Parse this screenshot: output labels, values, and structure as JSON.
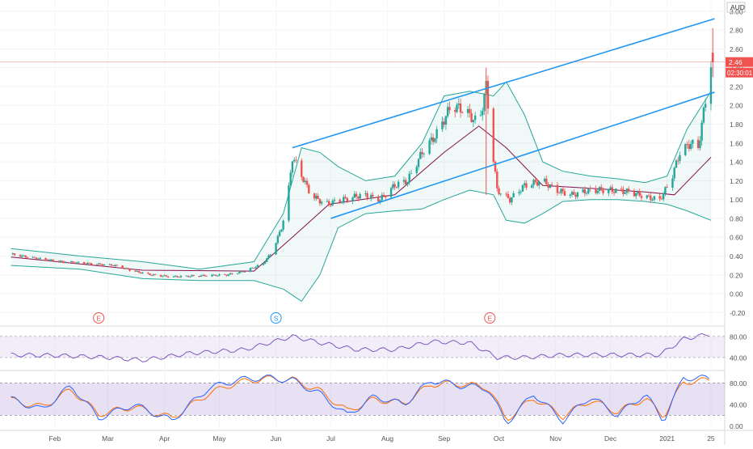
{
  "chart_data": {
    "type": "line",
    "instrument": {
      "currency": "AUD",
      "last_price": "2.46",
      "countdown": "02:30:01"
    },
    "colors": {
      "up": "#26a69a",
      "down": "#ef5350",
      "channel": "#2196f3",
      "bands": "#26a69a",
      "basis": "#880e4f",
      "rsi": "#7e57c2",
      "stoch_k": "#2962ff",
      "stoch_d": "#ff6d00"
    },
    "x_months": [
      {
        "label": "Feb",
        "date": "2020-02-01"
      },
      {
        "label": "Mar",
        "date": "2020-03-01"
      },
      {
        "label": "Apr",
        "date": "2020-04-01"
      },
      {
        "label": "May",
        "date": "2020-05-01"
      },
      {
        "label": "Jun",
        "date": "2020-06-01"
      },
      {
        "label": "Jul",
        "date": "2020-07-01"
      },
      {
        "label": "Aug",
        "date": "2020-08-01"
      },
      {
        "label": "Sep",
        "date": "2020-09-01"
      },
      {
        "label": "Oct",
        "date": "2020-10-01"
      },
      {
        "label": "Nov",
        "date": "2020-11-01"
      },
      {
        "label": "Dec",
        "date": "2020-12-01"
      },
      {
        "label": "2021",
        "date": "2021-01-01"
      },
      {
        "label": "25",
        "date": "2021-01-25"
      }
    ],
    "price_axis": {
      "ylim": [
        -0.3,
        3.05
      ],
      "ticks": [
        "3.00",
        "2.80",
        "2.60",
        "2.40",
        "2.20",
        "2.00",
        "1.80",
        "1.60",
        "1.40",
        "1.20",
        "1.00",
        "0.80",
        "0.60",
        "0.40",
        "0.20",
        "0.00",
        "-0.20"
      ]
    },
    "price_series": [
      {
        "date": "2020-01-08",
        "v": 0.42
      },
      {
        "date": "2020-01-20",
        "v": 0.38
      },
      {
        "date": "2020-02-05",
        "v": 0.34
      },
      {
        "date": "2020-02-20",
        "v": 0.32
      },
      {
        "date": "2020-03-05",
        "v": 0.3
      },
      {
        "date": "2020-03-15",
        "v": 0.24
      },
      {
        "date": "2020-03-25",
        "v": 0.2
      },
      {
        "date": "2020-04-05",
        "v": 0.18
      },
      {
        "date": "2020-04-20",
        "v": 0.19
      },
      {
        "date": "2020-05-05",
        "v": 0.2
      },
      {
        "date": "2020-05-15",
        "v": 0.24
      },
      {
        "date": "2020-05-25",
        "v": 0.32
      },
      {
        "date": "2020-05-30",
        "v": 0.45
      },
      {
        "date": "2020-06-04",
        "v": 0.7
      },
      {
        "date": "2020-06-07",
        "v": 0.95
      },
      {
        "date": "2020-06-10",
        "v": 1.45
      },
      {
        "date": "2020-06-14",
        "v": 1.3
      },
      {
        "date": "2020-06-20",
        "v": 1.05
      },
      {
        "date": "2020-06-28",
        "v": 0.95
      },
      {
        "date": "2020-07-08",
        "v": 1.0
      },
      {
        "date": "2020-07-18",
        "v": 1.05
      },
      {
        "date": "2020-07-28",
        "v": 1.0
      },
      {
        "date": "2020-08-05",
        "v": 1.15
      },
      {
        "date": "2020-08-12",
        "v": 1.2
      },
      {
        "date": "2020-08-20",
        "v": 1.5
      },
      {
        "date": "2020-08-28",
        "v": 1.7
      },
      {
        "date": "2020-09-05",
        "v": 2.0
      },
      {
        "date": "2020-09-12",
        "v": 1.95
      },
      {
        "date": "2020-09-20",
        "v": 1.8
      },
      {
        "date": "2020-09-24",
        "v": 2.2
      },
      {
        "date": "2020-09-27",
        "v": 1.6
      },
      {
        "date": "2020-09-30",
        "v": 1.1
      },
      {
        "date": "2020-10-07",
        "v": 1.0
      },
      {
        "date": "2020-10-15",
        "v": 1.15
      },
      {
        "date": "2020-10-25",
        "v": 1.2
      },
      {
        "date": "2020-11-01",
        "v": 1.1
      },
      {
        "date": "2020-11-10",
        "v": 1.05
      },
      {
        "date": "2020-11-20",
        "v": 1.1
      },
      {
        "date": "2020-12-01",
        "v": 1.1
      },
      {
        "date": "2020-12-12",
        "v": 1.08
      },
      {
        "date": "2020-12-22",
        "v": 1.02
      },
      {
        "date": "2020-12-28",
        "v": 1.0
      },
      {
        "date": "2021-01-03",
        "v": 1.2
      },
      {
        "date": "2021-01-08",
        "v": 1.5
      },
      {
        "date": "2021-01-14",
        "v": 1.6
      },
      {
        "date": "2021-01-18",
        "v": 1.55
      },
      {
        "date": "2021-01-22",
        "v": 2.05
      },
      {
        "date": "2021-01-25",
        "v": 2.46
      }
    ],
    "upper_band": [
      {
        "date": "2020-01-08",
        "v": 0.48
      },
      {
        "date": "2020-02-15",
        "v": 0.4
      },
      {
        "date": "2020-03-20",
        "v": 0.34
      },
      {
        "date": "2020-04-20",
        "v": 0.26
      },
      {
        "date": "2020-05-20",
        "v": 0.34
      },
      {
        "date": "2020-06-05",
        "v": 0.85
      },
      {
        "date": "2020-06-15",
        "v": 1.55
      },
      {
        "date": "2020-06-25",
        "v": 1.5
      },
      {
        "date": "2020-07-05",
        "v": 1.35
      },
      {
        "date": "2020-07-20",
        "v": 1.2
      },
      {
        "date": "2020-08-05",
        "v": 1.25
      },
      {
        "date": "2020-08-20",
        "v": 1.6
      },
      {
        "date": "2020-09-01",
        "v": 2.1
      },
      {
        "date": "2020-09-15",
        "v": 2.15
      },
      {
        "date": "2020-09-28",
        "v": 2.1
      },
      {
        "date": "2020-10-05",
        "v": 2.25
      },
      {
        "date": "2020-10-15",
        "v": 1.9
      },
      {
        "date": "2020-10-25",
        "v": 1.4
      },
      {
        "date": "2020-11-05",
        "v": 1.3
      },
      {
        "date": "2020-11-20",
        "v": 1.25
      },
      {
        "date": "2020-12-05",
        "v": 1.22
      },
      {
        "date": "2020-12-20",
        "v": 1.18
      },
      {
        "date": "2021-01-01",
        "v": 1.25
      },
      {
        "date": "2021-01-12",
        "v": 1.75
      },
      {
        "date": "2021-01-25",
        "v": 2.15
      }
    ],
    "lower_band": [
      {
        "date": "2020-01-08",
        "v": 0.3
      },
      {
        "date": "2020-02-15",
        "v": 0.26
      },
      {
        "date": "2020-03-20",
        "v": 0.16
      },
      {
        "date": "2020-04-20",
        "v": 0.14
      },
      {
        "date": "2020-05-20",
        "v": 0.14
      },
      {
        "date": "2020-06-05",
        "v": 0.05
      },
      {
        "date": "2020-06-15",
        "v": -0.08
      },
      {
        "date": "2020-06-25",
        "v": 0.2
      },
      {
        "date": "2020-07-05",
        "v": 0.7
      },
      {
        "date": "2020-07-20",
        "v": 0.85
      },
      {
        "date": "2020-08-05",
        "v": 0.88
      },
      {
        "date": "2020-08-20",
        "v": 0.9
      },
      {
        "date": "2020-09-01",
        "v": 1.0
      },
      {
        "date": "2020-09-15",
        "v": 1.1
      },
      {
        "date": "2020-09-28",
        "v": 1.05
      },
      {
        "date": "2020-10-05",
        "v": 0.78
      },
      {
        "date": "2020-10-15",
        "v": 0.75
      },
      {
        "date": "2020-10-25",
        "v": 0.85
      },
      {
        "date": "2020-11-05",
        "v": 0.98
      },
      {
        "date": "2020-11-20",
        "v": 1.0
      },
      {
        "date": "2020-12-05",
        "v": 1.0
      },
      {
        "date": "2020-12-20",
        "v": 0.98
      },
      {
        "date": "2021-01-01",
        "v": 0.95
      },
      {
        "date": "2021-01-12",
        "v": 0.88
      },
      {
        "date": "2021-01-25",
        "v": 0.78
      }
    ],
    "basis": [
      {
        "date": "2020-01-08",
        "v": 0.39
      },
      {
        "date": "2020-03-20",
        "v": 0.25
      },
      {
        "date": "2020-05-20",
        "v": 0.24
      },
      {
        "date": "2020-06-10",
        "v": 0.6
      },
      {
        "date": "2020-06-30",
        "v": 0.95
      },
      {
        "date": "2020-08-05",
        "v": 1.05
      },
      {
        "date": "2020-09-01",
        "v": 1.5
      },
      {
        "date": "2020-09-20",
        "v": 1.78
      },
      {
        "date": "2020-10-05",
        "v": 1.55
      },
      {
        "date": "2020-10-25",
        "v": 1.15
      },
      {
        "date": "2020-11-20",
        "v": 1.12
      },
      {
        "date": "2020-12-20",
        "v": 1.08
      },
      {
        "date": "2021-01-05",
        "v": 1.05
      },
      {
        "date": "2021-01-25",
        "v": 1.45
      }
    ],
    "trend_channel": [
      {
        "from": {
          "date": "2020-06-10",
          "v": 1.55
        },
        "to": {
          "date": "2021-01-27",
          "v": 2.92
        }
      },
      {
        "from": {
          "date": "2020-07-01",
          "v": 0.8
        },
        "to": {
          "date": "2021-01-27",
          "v": 2.14
        }
      }
    ],
    "event_markers": [
      {
        "label": "E",
        "date": "2020-02-25"
      },
      {
        "label": "S",
        "date": "2020-06-01"
      },
      {
        "label": "E",
        "date": "2020-09-26"
      }
    ],
    "rsi": {
      "levels": [
        "80.00",
        "40.00"
      ],
      "ylim": [
        20,
        95
      ],
      "values": [
        {
          "date": "2020-01-08",
          "v": 45
        },
        {
          "date": "2020-02-01",
          "v": 44
        },
        {
          "date": "2020-03-01",
          "v": 40
        },
        {
          "date": "2020-03-20",
          "v": 35
        },
        {
          "date": "2020-04-15",
          "v": 48
        },
        {
          "date": "2020-05-15",
          "v": 55
        },
        {
          "date": "2020-06-10",
          "v": 80
        },
        {
          "date": "2020-06-25",
          "v": 68
        },
        {
          "date": "2020-07-15",
          "v": 55
        },
        {
          "date": "2020-08-05",
          "v": 55
        },
        {
          "date": "2020-08-25",
          "v": 70
        },
        {
          "date": "2020-09-15",
          "v": 68
        },
        {
          "date": "2020-09-30",
          "v": 40
        },
        {
          "date": "2020-10-15",
          "v": 40
        },
        {
          "date": "2020-11-05",
          "v": 45
        },
        {
          "date": "2020-12-01",
          "v": 45
        },
        {
          "date": "2020-12-28",
          "v": 45
        },
        {
          "date": "2021-01-10",
          "v": 75
        },
        {
          "date": "2021-01-25",
          "v": 85
        }
      ]
    },
    "stoch": {
      "levels": [
        "80.00",
        "40.00",
        "0.00"
      ],
      "ylim": [
        -5,
        100
      ],
      "k_values": [
        {
          "date": "2020-01-08",
          "v": 50
        },
        {
          "date": "2020-01-25",
          "v": 30
        },
        {
          "date": "2020-02-10",
          "v": 75
        },
        {
          "date": "2020-02-25",
          "v": 15
        },
        {
          "date": "2020-03-15",
          "v": 40
        },
        {
          "date": "2020-04-05",
          "v": 10
        },
        {
          "date": "2020-04-25",
          "v": 70
        },
        {
          "date": "2020-05-10",
          "v": 85
        },
        {
          "date": "2020-05-25",
          "v": 90
        },
        {
          "date": "2020-06-10",
          "v": 85
        },
        {
          "date": "2020-06-25",
          "v": 60
        },
        {
          "date": "2020-07-10",
          "v": 20
        },
        {
          "date": "2020-07-25",
          "v": 55
        },
        {
          "date": "2020-08-10",
          "v": 40
        },
        {
          "date": "2020-08-25",
          "v": 85
        },
        {
          "date": "2020-09-10",
          "v": 75
        },
        {
          "date": "2020-09-25",
          "v": 70
        },
        {
          "date": "2020-10-05",
          "v": 5
        },
        {
          "date": "2020-10-20",
          "v": 60
        },
        {
          "date": "2020-11-05",
          "v": 10
        },
        {
          "date": "2020-11-20",
          "v": 55
        },
        {
          "date": "2020-12-05",
          "v": 20
        },
        {
          "date": "2020-12-20",
          "v": 60
        },
        {
          "date": "2020-12-30",
          "v": 10
        },
        {
          "date": "2021-01-10",
          "v": 90
        },
        {
          "date": "2021-01-25",
          "v": 88
        }
      ],
      "d_values": [
        {
          "date": "2020-01-08",
          "v": 48
        },
        {
          "date": "2020-01-25",
          "v": 35
        },
        {
          "date": "2020-02-10",
          "v": 68
        },
        {
          "date": "2020-02-25",
          "v": 22
        },
        {
          "date": "2020-03-15",
          "v": 36
        },
        {
          "date": "2020-04-05",
          "v": 15
        },
        {
          "date": "2020-04-25",
          "v": 60
        },
        {
          "date": "2020-05-10",
          "v": 80
        },
        {
          "date": "2020-05-25",
          "v": 88
        },
        {
          "date": "2020-06-10",
          "v": 86
        },
        {
          "date": "2020-06-25",
          "v": 65
        },
        {
          "date": "2020-07-10",
          "v": 28
        },
        {
          "date": "2020-07-25",
          "v": 50
        },
        {
          "date": "2020-08-10",
          "v": 42
        },
        {
          "date": "2020-08-25",
          "v": 78
        },
        {
          "date": "2020-09-10",
          "v": 78
        },
        {
          "date": "2020-09-25",
          "v": 72
        },
        {
          "date": "2020-10-05",
          "v": 12
        },
        {
          "date": "2020-10-20",
          "v": 52
        },
        {
          "date": "2020-11-05",
          "v": 18
        },
        {
          "date": "2020-11-20",
          "v": 48
        },
        {
          "date": "2020-12-05",
          "v": 26
        },
        {
          "date": "2020-12-20",
          "v": 52
        },
        {
          "date": "2020-12-30",
          "v": 18
        },
        {
          "date": "2021-01-10",
          "v": 82
        },
        {
          "date": "2021-01-25",
          "v": 85
        }
      ]
    }
  }
}
